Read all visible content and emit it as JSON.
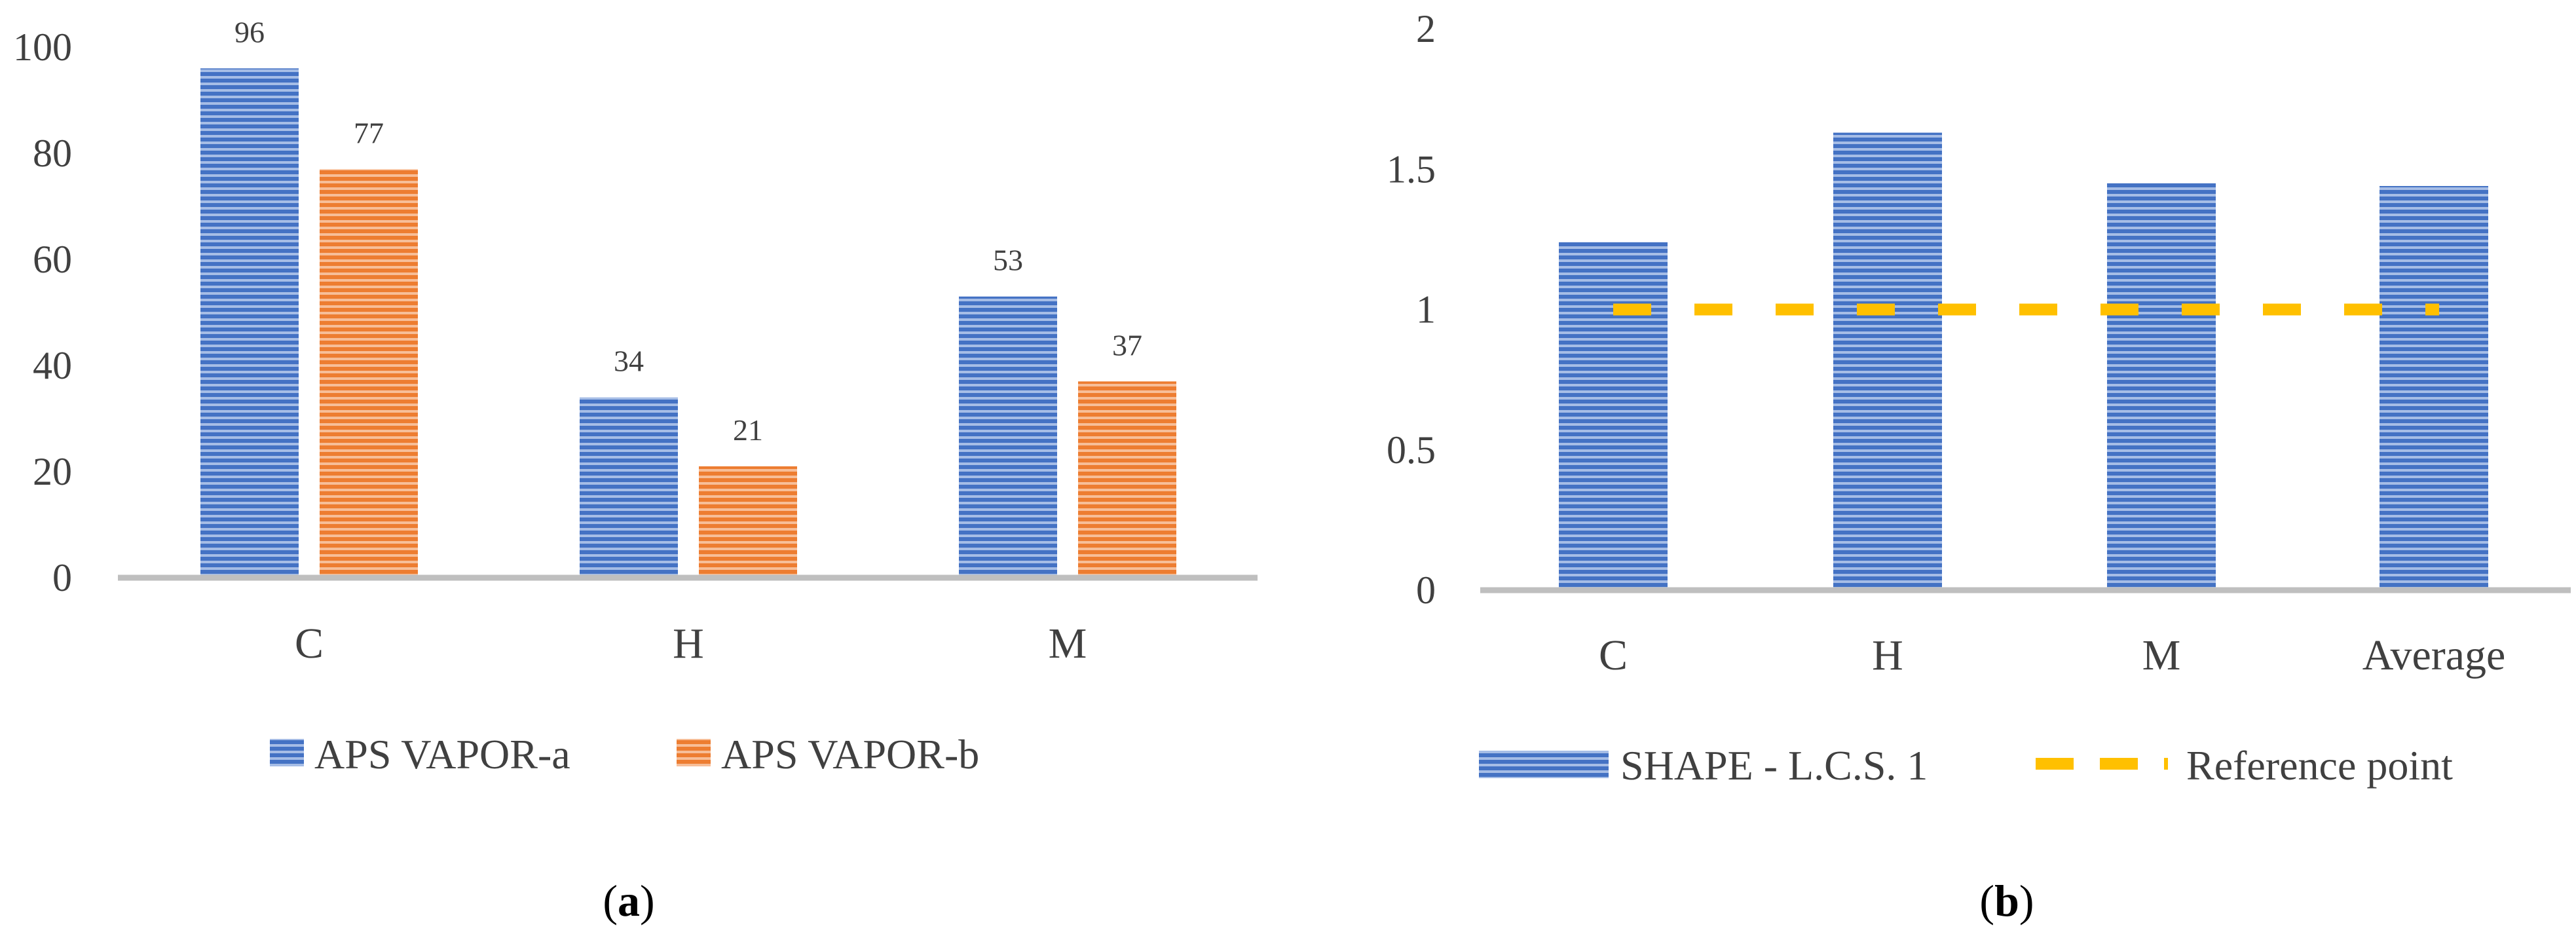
{
  "colors": {
    "series_a": "#4472C4",
    "series_b": "#ED7D31",
    "reference": "#FFC000",
    "axis": "#BFBFBF"
  },
  "chart_data": [
    {
      "id": "a",
      "type": "bar",
      "title": "",
      "caption": {
        "open": "(",
        "letter": "a",
        "close": ")"
      },
      "categories": [
        "C",
        "H",
        "M"
      ],
      "series": [
        {
          "name": "APS VAPOR-a",
          "values": [
            96,
            34,
            53
          ],
          "labels": [
            "96",
            "34",
            "53"
          ]
        },
        {
          "name": "APS VAPOR-b",
          "values": [
            77,
            21,
            37
          ],
          "labels": [
            "77",
            "21",
            "37"
          ]
        }
      ],
      "yticks": [
        "0",
        "20",
        "40",
        "60",
        "80",
        "100"
      ],
      "ylim": [
        0,
        100
      ],
      "xlabel": "",
      "ylabel": "",
      "grid": false,
      "legend": "bottom"
    },
    {
      "id": "b",
      "type": "bar",
      "title": "",
      "caption": {
        "open": "(",
        "letter": "b",
        "close": ")"
      },
      "categories": [
        "C",
        "H",
        "M",
        "Average"
      ],
      "series": [
        {
          "name": "SHAPE - L.C.S. 1",
          "values": [
            1.24,
            1.63,
            1.45,
            1.44
          ]
        }
      ],
      "reference": {
        "name": "Reference point",
        "value": 1
      },
      "yticks": [
        "0",
        "0.5",
        "1",
        "1.5",
        "2"
      ],
      "ylim": [
        0,
        2
      ],
      "xlabel": "",
      "ylabel": "",
      "grid": false,
      "legend": "bottom"
    }
  ]
}
